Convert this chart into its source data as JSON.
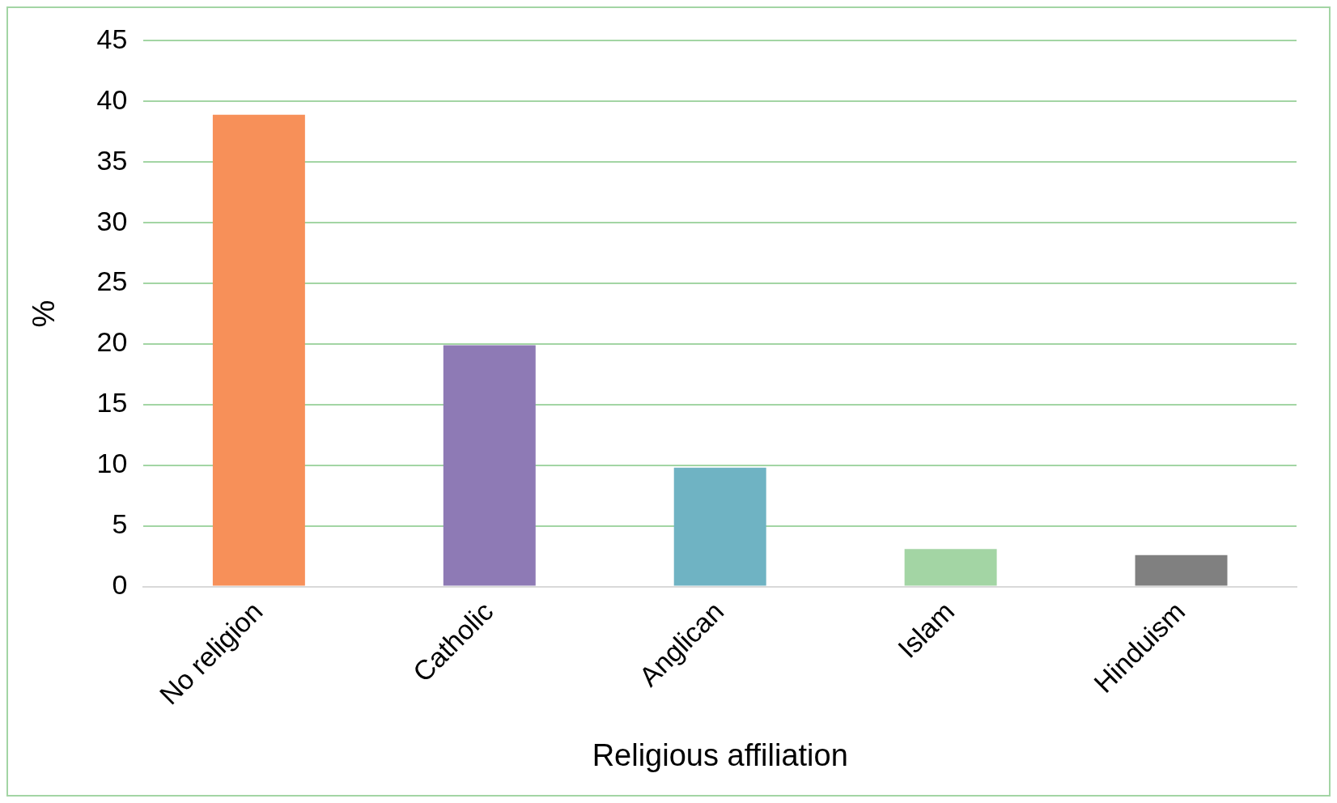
{
  "chart_data": {
    "type": "bar",
    "xlabel": "Religious affiliation",
    "ylabel": "%",
    "categories": [
      "No religion",
      "Catholic",
      "Anglican",
      "Islam",
      "Hinduism"
    ],
    "values": [
      38.9,
      19.9,
      9.8,
      3.1,
      2.6
    ],
    "colors": [
      "#f79059",
      "#8e7ab5",
      "#6fb3c3",
      "#a3d5a4",
      "#808080"
    ],
    "ylim": [
      0,
      45
    ],
    "yticks": [
      0,
      5,
      10,
      15,
      20,
      25,
      30,
      35,
      40,
      45
    ],
    "grid": "y",
    "legend": false
  }
}
